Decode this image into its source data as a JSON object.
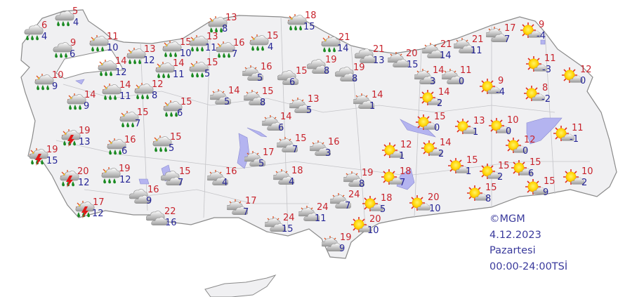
{
  "map": {
    "colors": {
      "land": "#f0f0f2",
      "border": "#8a8a8a",
      "lake": "#b4b4f0",
      "max_temp": "#c8232c",
      "min_temp": "#252596"
    },
    "legend_icons": {
      "rain": "cloud-rain-icon",
      "sun-rain": "sun-cloud-rain-icon",
      "thunder": "thunderstorm-icon",
      "cloudy": "cloudy-icon",
      "partly": "partly-cloudy-icon",
      "sunny": "mostly-sunny-icon"
    }
  },
  "stations": [
    {
      "cond": "rain",
      "max": "5",
      "min": "4"
    },
    {
      "cond": "rain",
      "max": "6",
      "min": "4"
    },
    {
      "cond": "rain",
      "max": "9",
      "min": "6"
    },
    {
      "cond": "sun-rain",
      "max": "11",
      "min": "10"
    },
    {
      "cond": "sun-rain",
      "max": "13",
      "min": "12"
    },
    {
      "cond": "sun-rain",
      "max": "14",
      "min": "12"
    },
    {
      "cond": "sun-rain",
      "max": "15",
      "min": "10"
    },
    {
      "cond": "sun-rain",
      "max": "14",
      "min": "11"
    },
    {
      "cond": "sun-rain",
      "max": "10",
      "min": "9"
    },
    {
      "cond": "sun-rain",
      "max": "14",
      "min": "11"
    },
    {
      "cond": "sun-rain",
      "max": "12",
      "min": "8"
    },
    {
      "cond": "sun-rain",
      "max": "14",
      "min": "9"
    },
    {
      "cond": "sun-rain",
      "max": "15",
      "min": "6"
    },
    {
      "cond": "sun-rain",
      "max": "15",
      "min": "7"
    },
    {
      "cond": "thunder",
      "max": "19",
      "min": "13"
    },
    {
      "cond": "sun-rain",
      "max": "16",
      "min": "6"
    },
    {
      "cond": "sun-rain",
      "max": "15",
      "min": "5"
    },
    {
      "cond": "thunder",
      "max": "19",
      "min": "15"
    },
    {
      "cond": "thunder",
      "max": "20",
      "min": "12"
    },
    {
      "cond": "sun-rain",
      "max": "19",
      "min": "12"
    },
    {
      "cond": "cloudy",
      "max": "15",
      "min": "7"
    },
    {
      "cond": "cloudy",
      "max": "16",
      "min": "9"
    },
    {
      "cond": "thunder",
      "max": "17",
      "min": "12"
    },
    {
      "cond": "cloudy",
      "max": "22",
      "min": "16"
    },
    {
      "cond": "sun-rain",
      "max": "13",
      "min": "8"
    },
    {
      "cond": "sun-rain",
      "max": "13",
      "min": "11"
    },
    {
      "cond": "sun-rain",
      "max": "16",
      "min": "7"
    },
    {
      "cond": "sun-rain",
      "max": "15",
      "min": "4"
    },
    {
      "cond": "sun-rain",
      "max": "15",
      "min": "5"
    },
    {
      "cond": "sun-rain",
      "max": "18",
      "min": "15"
    },
    {
      "cond": "sun-rain",
      "max": "21",
      "min": "14"
    },
    {
      "cond": "partly",
      "max": "16",
      "min": "5"
    },
    {
      "cond": "cloudy",
      "max": "15",
      "min": "6"
    },
    {
      "cond": "cloudy",
      "max": "19",
      "min": "8"
    },
    {
      "cond": "cloudy",
      "max": "19",
      "min": "8"
    },
    {
      "cond": "cloudy",
      "max": "21",
      "min": "13"
    },
    {
      "cond": "partly",
      "max": "14",
      "min": "5"
    },
    {
      "cond": "partly",
      "max": "15",
      "min": "8"
    },
    {
      "cond": "partly",
      "max": "13",
      "min": "5"
    },
    {
      "cond": "partly",
      "max": "14",
      "min": "1"
    },
    {
      "cond": "partly",
      "max": "14",
      "min": "6"
    },
    {
      "cond": "partly",
      "max": "15",
      "min": "7"
    },
    {
      "cond": "partly",
      "max": "16",
      "min": "3"
    },
    {
      "cond": "partly",
      "max": "17",
      "min": "5"
    },
    {
      "cond": "partly",
      "max": "16",
      "min": "4"
    },
    {
      "cond": "partly",
      "max": "18",
      "min": "4"
    },
    {
      "cond": "partly",
      "max": "17",
      "min": "7"
    },
    {
      "cond": "partly",
      "max": "24",
      "min": "15"
    },
    {
      "cond": "partly",
      "max": "24",
      "min": "11"
    },
    {
      "cond": "partly",
      "max": "19",
      "min": "8"
    },
    {
      "cond": "partly",
      "max": "24",
      "min": "7"
    },
    {
      "cond": "sunny",
      "max": "18",
      "min": "7"
    },
    {
      "cond": "sunny",
      "max": "18",
      "min": "5"
    },
    {
      "cond": "sunny",
      "max": "20",
      "min": "10"
    },
    {
      "cond": "partly",
      "max": "19",
      "min": "9"
    },
    {
      "cond": "partly",
      "max": "20",
      "min": "15"
    },
    {
      "cond": "partly",
      "max": "21",
      "min": "14"
    },
    {
      "cond": "partly",
      "max": "21",
      "min": "11"
    },
    {
      "cond": "partly",
      "max": "17",
      "min": "7"
    },
    {
      "cond": "sunny",
      "max": "9",
      "min": "-4"
    },
    {
      "cond": "partly",
      "max": "14",
      "min": "3"
    },
    {
      "cond": "partly",
      "max": "11",
      "min": "0"
    },
    {
      "cond": "sunny",
      "max": "9",
      "min": "-4"
    },
    {
      "cond": "sunny",
      "max": "11",
      "min": "-3"
    },
    {
      "cond": "sunny",
      "max": "12",
      "min": "0"
    },
    {
      "cond": "sunny",
      "max": "14",
      "min": "2"
    },
    {
      "cond": "sunny",
      "max": "8",
      "min": "-2"
    },
    {
      "cond": "sunny",
      "max": "15",
      "min": "0"
    },
    {
      "cond": "sunny",
      "max": "13",
      "min": "1"
    },
    {
      "cond": "sunny",
      "max": "10",
      "min": "0"
    },
    {
      "cond": "sunny",
      "max": "11",
      "min": "-1"
    },
    {
      "cond": "sunny",
      "max": "12",
      "min": "0"
    },
    {
      "cond": "sunny",
      "max": "12",
      "min": "1"
    },
    {
      "cond": "sunny",
      "max": "14",
      "min": "2"
    },
    {
      "cond": "sunny",
      "max": "15",
      "min": "1"
    },
    {
      "cond": "sunny",
      "max": "15",
      "min": "2"
    },
    {
      "cond": "sunny",
      "max": "15",
      "min": "6"
    },
    {
      "cond": "sunny",
      "max": "15",
      "min": "8"
    },
    {
      "cond": "sunny",
      "max": "15",
      "min": "9"
    },
    {
      "cond": "sunny",
      "max": "10",
      "min": "2"
    },
    {
      "cond": "sunny",
      "max": "20",
      "min": "10"
    }
  ],
  "credit": {
    "copyright": "©MGM",
    "date": "4.12.2023",
    "day": "Pazartesi",
    "period": "00:00-24:00TSİ"
  }
}
